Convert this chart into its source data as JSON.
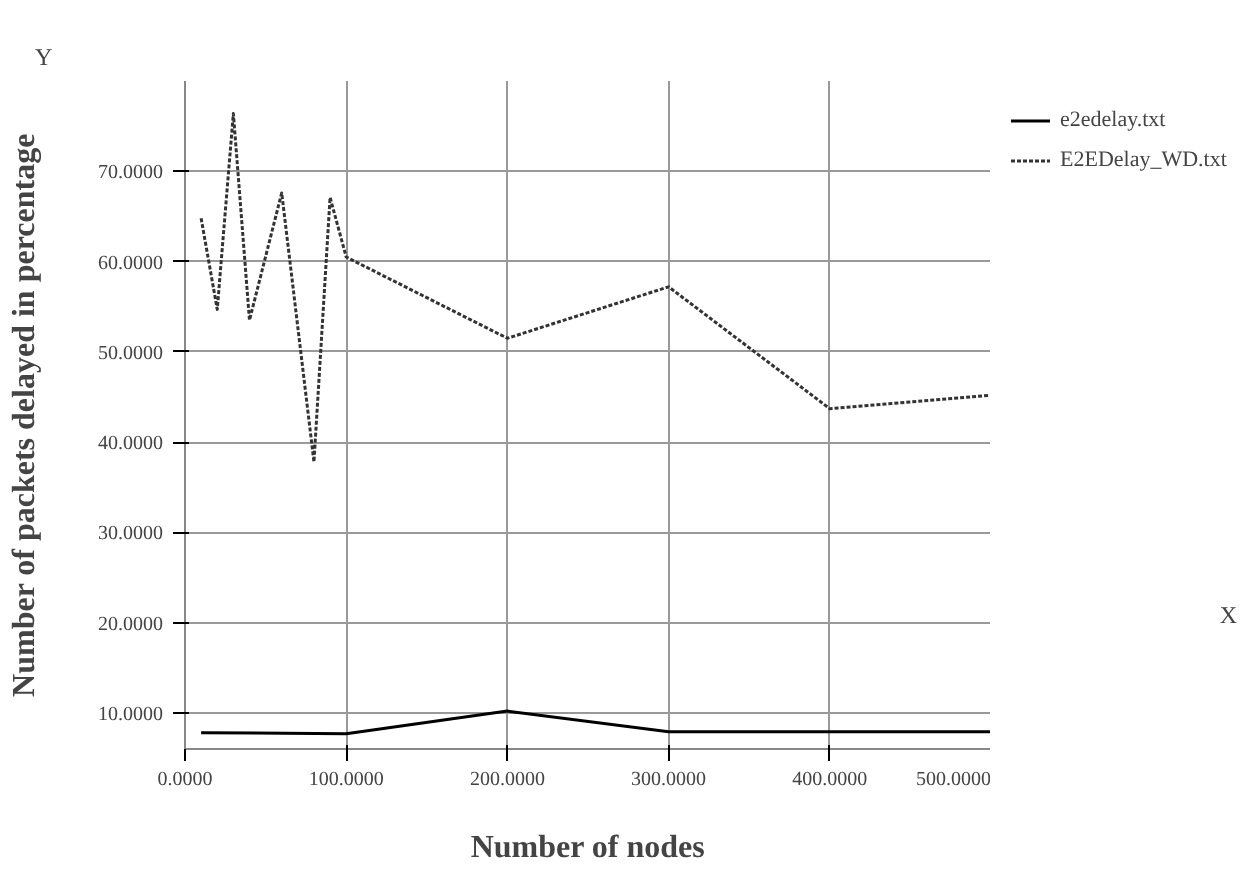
{
  "chart_data": {
    "type": "line",
    "xlabel": "Number of nodes",
    "ylabel": "Number of packets delayed in percentage",
    "annotations": [
      "Y",
      "X"
    ],
    "xlim": [
      0,
      500
    ],
    "ylim": [
      6,
      80
    ],
    "xticks": [
      {
        "value": 0,
        "label": "0.0000"
      },
      {
        "value": 100,
        "label": "100.0000"
      },
      {
        "value": 200,
        "label": "200.0000"
      },
      {
        "value": 300,
        "label": "300.0000"
      },
      {
        "value": 400,
        "label": "400.0000"
      },
      {
        "value": 500,
        "label": "500.0000"
      }
    ],
    "yticks": [
      {
        "value": 10,
        "label": "10.0000"
      },
      {
        "value": 20,
        "label": "20.0000"
      },
      {
        "value": 30,
        "label": "30.0000"
      },
      {
        "value": 40,
        "label": "40.0000"
      },
      {
        "value": 50,
        "label": "50.0000"
      },
      {
        "value": 60,
        "label": "60.0000"
      },
      {
        "value": 70,
        "label": "70.0000"
      }
    ],
    "grid": true,
    "legend": "top right",
    "marker": "none",
    "series": [
      {
        "name": "e2edelay.txt",
        "color": "#000000",
        "line_style": "solid",
        "x": [
          10,
          100,
          200,
          300,
          400,
          500
        ],
        "values": [
          7.8,
          7.7,
          10.2,
          7.9,
          7.9,
          7.9
        ]
      },
      {
        "name": "E2EDelay_WD.txt",
        "color": "#333333",
        "line_style": "dotted",
        "x": [
          10,
          20,
          30,
          40,
          60,
          80,
          90,
          100,
          200,
          300,
          400,
          500
        ],
        "values": [
          64.8,
          54.7,
          76.4,
          53.5,
          67.6,
          37.8,
          67.1,
          60.5,
          51.5,
          57.2,
          43.7,
          45.2
        ]
      }
    ]
  }
}
